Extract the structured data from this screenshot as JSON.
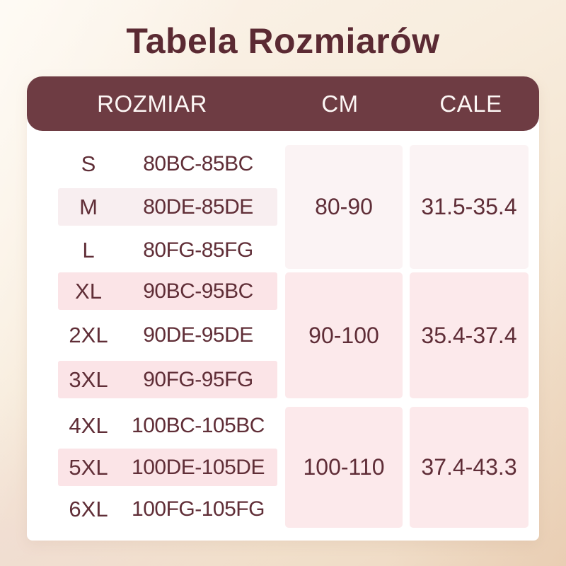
{
  "title": "Tabela Rozmiarów",
  "colors": {
    "header_bar": "#6e3c43",
    "header_text": "#fcf6f4",
    "title_text": "#5b2a33",
    "body_text": "#602e37",
    "stripe_pink": "#fbe4e7",
    "stripe_light": "#f8eef0",
    "card_white": "#ffffff",
    "background_cream": "#f5e6d4"
  },
  "table": {
    "columns": [
      "ROZMIAR",
      "CM",
      "CALE"
    ],
    "groups": [
      {
        "tone": "light",
        "rows": [
          {
            "size": "S",
            "code": "80BC-85BC"
          },
          {
            "size": "M",
            "code": "80DE-85DE"
          },
          {
            "size": "L",
            "code": "80FG-85FG"
          }
        ],
        "cm": "80-90",
        "cale": "31.5-35.4"
      },
      {
        "tone": "pink",
        "rows": [
          {
            "size": "XL",
            "code": "90BC-95BC"
          },
          {
            "size": "2XL",
            "code": "90DE-95DE"
          },
          {
            "size": "3XL",
            "code": "90FG-95FG"
          }
        ],
        "cm": "90-100",
        "cale": "35.4-37.4"
      },
      {
        "tone": "pink",
        "rows": [
          {
            "size": "4XL",
            "code": "100BC-105BC"
          },
          {
            "size": "5XL",
            "code": "100DE-105DE"
          },
          {
            "size": "6XL",
            "code": "100FG-105FG"
          }
        ],
        "cm": "100-110",
        "cale": "37.4-43.3"
      }
    ]
  },
  "chart_data": {
    "type": "table",
    "title": "Tabela Rozmiarów",
    "columns": [
      "ROZMIAR (size)",
      "ROZMIAR (cup range)",
      "CM",
      "CALE"
    ],
    "rows": [
      [
        "S",
        "80BC-85BC",
        "80-90",
        "31.5-35.4"
      ],
      [
        "M",
        "80DE-85DE",
        "80-90",
        "31.5-35.4"
      ],
      [
        "L",
        "80FG-85FG",
        "80-90",
        "31.5-35.4"
      ],
      [
        "XL",
        "90BC-95BC",
        "90-100",
        "35.4-37.4"
      ],
      [
        "2XL",
        "90DE-95DE",
        "90-100",
        "35.4-37.4"
      ],
      [
        "3XL",
        "90FG-95FG",
        "90-100",
        "35.4-37.4"
      ],
      [
        "4XL",
        "100BC-105BC",
        "100-110",
        "37.4-43.3"
      ],
      [
        "5XL",
        "100DE-105DE",
        "100-110",
        "37.4-43.3"
      ],
      [
        "6XL",
        "100FG-105FG",
        "100-110",
        "37.4-43.3"
      ]
    ]
  }
}
